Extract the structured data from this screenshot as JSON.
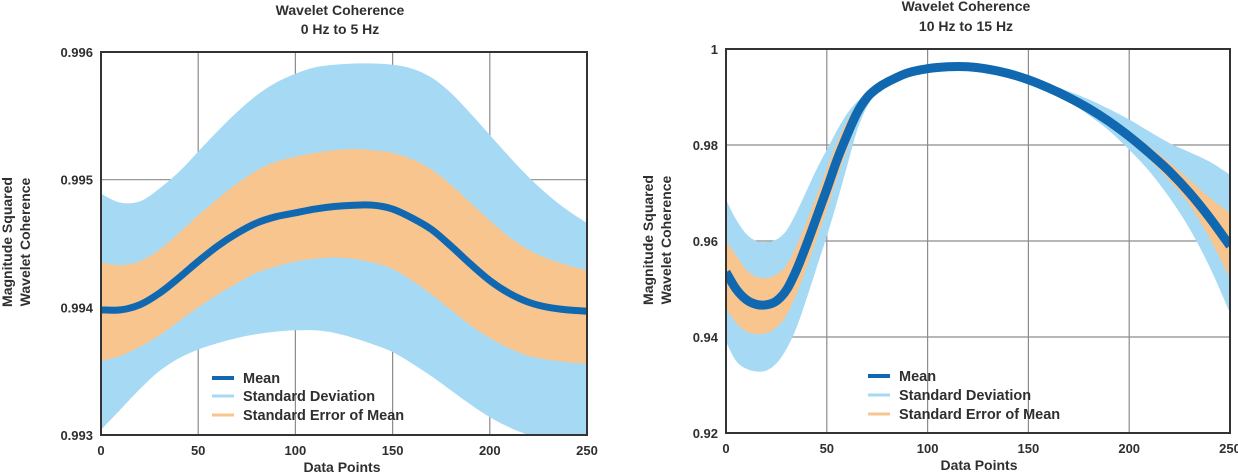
{
  "chart_data": [
    {
      "type": "area",
      "title": "Wavelet Coherence",
      "subtitle": "0 Hz to 5 Hz",
      "xlabel": "Data Points",
      "ylabel": [
        "Magnitude Squared",
        "Wavelet Coherence"
      ],
      "xlim": [
        0,
        250
      ],
      "ylim": [
        0.993,
        0.996
      ],
      "xticks": [
        0,
        50,
        100,
        150,
        200,
        250
      ],
      "xtick_labels": [
        "0",
        "50",
        "100",
        "150",
        "200",
        "250"
      ],
      "yticks": [
        0.993,
        0.994,
        0.995,
        0.996
      ],
      "ytick_labels": [
        "0.993",
        "0.994",
        "0.995",
        "0.996"
      ],
      "grid": true,
      "legend_position": "bottom-center",
      "legend": [
        "Mean",
        "Standard Deviation",
        "Standard Error of Mean"
      ],
      "x": [
        0,
        10,
        20,
        30,
        40,
        50,
        60,
        70,
        80,
        90,
        100,
        110,
        120,
        130,
        140,
        150,
        160,
        170,
        180,
        190,
        200,
        210,
        220,
        230,
        240,
        250
      ],
      "series": [
        {
          "name": "Standard Deviation",
          "kind": "band",
          "color": "#A6DAF4",
          "upper": [
            0.99489,
            0.99482,
            0.99483,
            0.99493,
            0.99506,
            0.99522,
            0.99538,
            0.99553,
            0.99566,
            0.99576,
            0.99583,
            0.99588,
            0.9959,
            0.99591,
            0.99591,
            0.9959,
            0.99587,
            0.9958,
            0.99568,
            0.99552,
            0.99535,
            0.99518,
            0.99502,
            0.99488,
            0.99476,
            0.99466
          ],
          "lower": [
            0.99304,
            0.9932,
            0.99336,
            0.9935,
            0.9936,
            0.99367,
            0.99372,
            0.99376,
            0.99379,
            0.99381,
            0.99382,
            0.99382,
            0.9938,
            0.99376,
            0.99371,
            0.99365,
            0.99356,
            0.99346,
            0.99335,
            0.99324,
            0.99314,
            0.99306,
            0.993,
            0.99296,
            0.99293,
            0.99292
          ]
        },
        {
          "name": "Standard Error of Mean",
          "kind": "band",
          "color": "#F9C58E",
          "upper": [
            0.99435,
            0.99433,
            0.99436,
            0.99445,
            0.99458,
            0.99472,
            0.99485,
            0.99497,
            0.99507,
            0.99514,
            0.99518,
            0.99521,
            0.99523,
            0.99524,
            0.99523,
            0.99521,
            0.99516,
            0.99508,
            0.99496,
            0.99482,
            0.99468,
            0.99455,
            0.99445,
            0.99438,
            0.99433,
            0.99429
          ],
          "lower": [
            0.99358,
            0.99362,
            0.99369,
            0.99378,
            0.99389,
            0.994,
            0.9941,
            0.99419,
            0.99427,
            0.99432,
            0.99436,
            0.99438,
            0.99439,
            0.99438,
            0.99435,
            0.9943,
            0.99421,
            0.9941,
            0.99398,
            0.99386,
            0.99376,
            0.99368,
            0.99362,
            0.99359,
            0.99357,
            0.99356
          ]
        },
        {
          "name": "Mean",
          "kind": "line",
          "color": "#1068B0",
          "values": [
            0.99398,
            0.99398,
            0.99402,
            0.99411,
            0.99423,
            0.99436,
            0.99448,
            0.99458,
            0.99466,
            0.99471,
            0.99474,
            0.99477,
            0.99479,
            0.9948,
            0.9948,
            0.99477,
            0.9947,
            0.99461,
            0.99448,
            0.99434,
            0.99421,
            0.99411,
            0.99404,
            0.994,
            0.99398,
            0.99397
          ]
        }
      ]
    },
    {
      "type": "area",
      "title": "Wavelet Coherence",
      "subtitle": "10 Hz to 15 Hz",
      "xlabel": "Data Points",
      "ylabel": [
        "Magnitude Squared",
        "Wavelet Coherence"
      ],
      "xlim": [
        0,
        250
      ],
      "ylim": [
        0.92,
        1.0
      ],
      "xticks": [
        0,
        50,
        100,
        150,
        200,
        250
      ],
      "xtick_labels": [
        "0",
        "50",
        "100",
        "150",
        "200",
        "250"
      ],
      "yticks": [
        0.92,
        0.94,
        0.96,
        0.98,
        1.0
      ],
      "ytick_labels": [
        "0.92",
        "0.94",
        "0.96",
        "0.98",
        "1"
      ],
      "grid": true,
      "legend_position": "bottom-center",
      "legend": [
        "Mean",
        "Standard Deviation",
        "Standard Error of Mean"
      ],
      "x": [
        0,
        5,
        10,
        15,
        20,
        25,
        30,
        35,
        40,
        45,
        50,
        55,
        60,
        65,
        70,
        75,
        80,
        90,
        100,
        110,
        120,
        130,
        140,
        150,
        160,
        170,
        180,
        190,
        200,
        210,
        220,
        230,
        240,
        250
      ],
      "series": [
        {
          "name": "Standard Deviation",
          "kind": "band",
          "color": "#A6DAF4",
          "upper": [
            0.9686,
            0.9645,
            0.9615,
            0.96,
            0.9598,
            0.9603,
            0.9622,
            0.966,
            0.9705,
            0.975,
            0.979,
            0.983,
            0.9865,
            0.989,
            0.9908,
            0.9922,
            0.9934,
            0.9951,
            0.996,
            0.9964,
            0.9964,
            0.996,
            0.9952,
            0.9941,
            0.9927,
            0.9912,
            0.9895,
            0.9875,
            0.9853,
            0.9828,
            0.9804,
            0.9785,
            0.9765,
            0.9738
          ],
          "lower": [
            0.939,
            0.935,
            0.9334,
            0.9328,
            0.933,
            0.9345,
            0.9375,
            0.942,
            0.948,
            0.9545,
            0.961,
            0.968,
            0.9755,
            0.983,
            0.988,
            0.991,
            0.9928,
            0.9948,
            0.9958,
            0.9962,
            0.9961,
            0.9956,
            0.9946,
            0.9932,
            0.9913,
            0.989,
            0.9862,
            0.983,
            0.979,
            0.9745,
            0.969,
            0.9625,
            0.9545,
            0.945
          ]
        },
        {
          "name": "Standard Error of Mean",
          "kind": "band",
          "color": "#F9C58E",
          "upper": [
            0.96,
            0.957,
            0.954,
            0.9525,
            0.9523,
            0.953,
            0.955,
            0.959,
            0.964,
            0.9695,
            0.975,
            0.9805,
            0.985,
            0.9884,
            0.9905,
            0.992,
            0.9932,
            0.995,
            0.9959,
            0.9963,
            0.9963,
            0.9958,
            0.9949,
            0.9937,
            0.9921,
            0.9902,
            0.988,
            0.9856,
            0.9828,
            0.9797,
            0.9763,
            0.9727,
            0.969,
            0.9658
          ],
          "lower": [
            0.946,
            0.943,
            0.9412,
            0.9406,
            0.9408,
            0.942,
            0.9445,
            0.949,
            0.9545,
            0.9605,
            0.9665,
            0.973,
            0.979,
            0.985,
            0.9893,
            0.9915,
            0.993,
            0.9949,
            0.9959,
            0.9963,
            0.9962,
            0.9957,
            0.9948,
            0.9935,
            0.9917,
            0.9896,
            0.9871,
            0.9842,
            0.9808,
            0.977,
            0.9726,
            0.9675,
            0.9605,
            0.9523
          ]
        },
        {
          "name": "Mean",
          "kind": "line",
          "color": "#1068B0",
          "values": [
            0.9535,
            0.95,
            0.9478,
            0.9468,
            0.9467,
            0.9475,
            0.9498,
            0.954,
            0.9593,
            0.965,
            0.9708,
            0.9768,
            0.982,
            0.9867,
            0.9899,
            0.9918,
            0.9931,
            0.995,
            0.9959,
            0.9963,
            0.9963,
            0.9958,
            0.9949,
            0.9936,
            0.9919,
            0.9899,
            0.9876,
            0.9849,
            0.9818,
            0.9783,
            0.9745,
            0.97,
            0.9648,
            0.959
          ]
        }
      ]
    }
  ]
}
